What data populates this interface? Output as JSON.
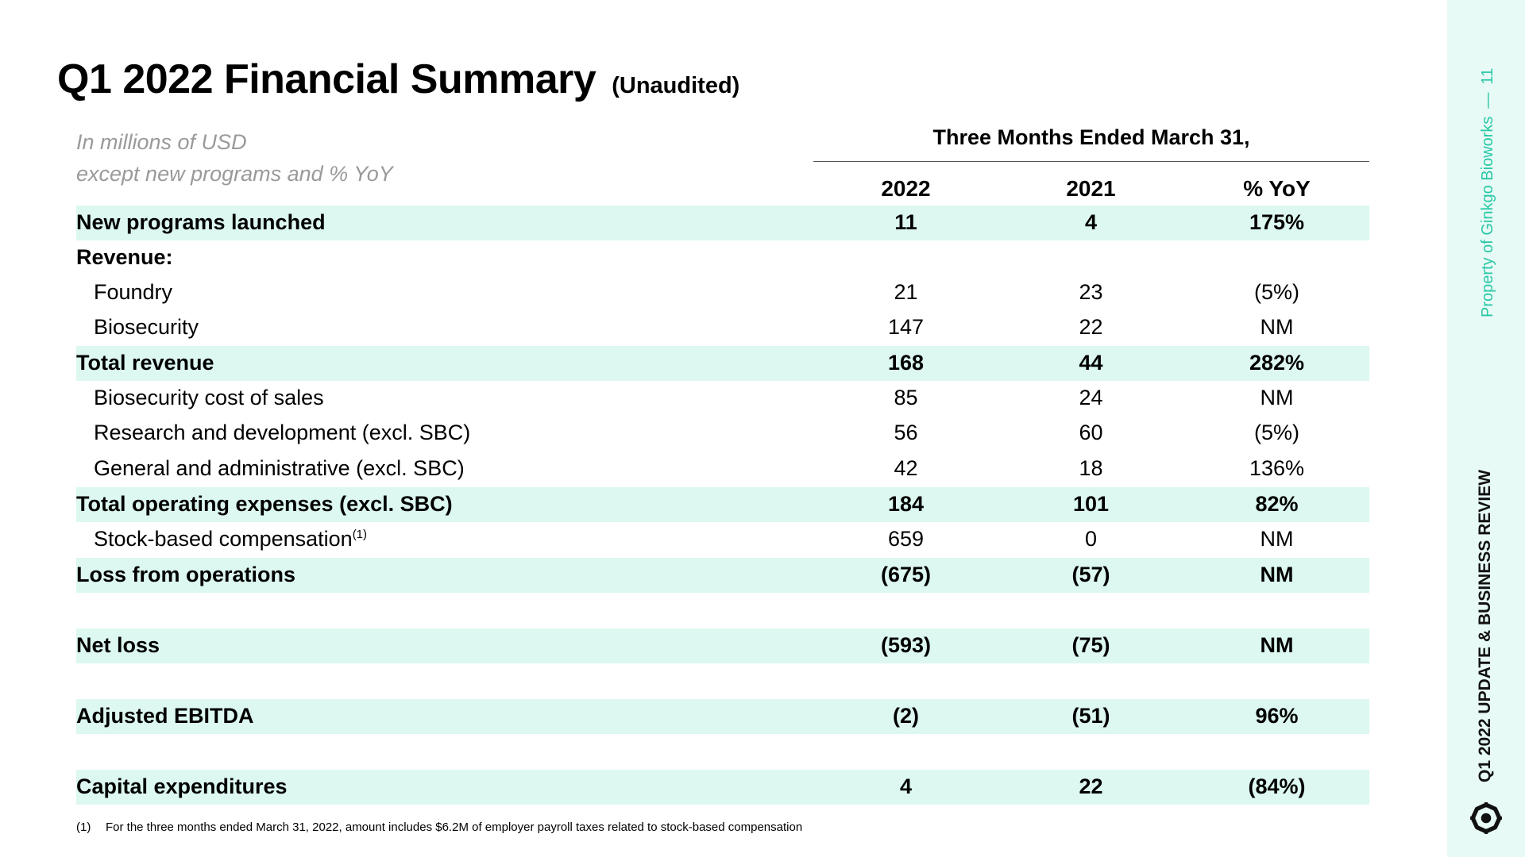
{
  "title": {
    "main": "Q1 2022 Financial Summary",
    "suffix": "(Unaudited)"
  },
  "units": {
    "line1": "In millions of USD",
    "line2": "except new programs and % YoY"
  },
  "period_header": "Three Months Ended March 31,",
  "columns": [
    "2022",
    "2021",
    "% YoY"
  ],
  "rows": [
    {
      "label": "New programs launched",
      "values": [
        "11",
        "4",
        "175%"
      ]
    },
    {
      "label": "Revenue:",
      "values": [
        "",
        "",
        ""
      ]
    },
    {
      "label": "Foundry",
      "values": [
        "21",
        "23",
        "(5%)"
      ]
    },
    {
      "label": "Biosecurity",
      "values": [
        "147",
        "22",
        "NM"
      ]
    },
    {
      "label": "Total revenue",
      "values": [
        "168",
        "44",
        "282%"
      ]
    },
    {
      "label": "Biosecurity cost of sales",
      "values": [
        "85",
        "24",
        "NM"
      ]
    },
    {
      "label": "Research and development (excl. SBC)",
      "values": [
        "56",
        "60",
        "(5%)"
      ]
    },
    {
      "label": "General and administrative (excl. SBC)",
      "values": [
        "42",
        "18",
        "136%"
      ]
    },
    {
      "label": "Total operating expenses (excl. SBC)",
      "values": [
        "184",
        "101",
        "82%"
      ]
    },
    {
      "label": "Stock-based compensation",
      "footnote_mark": "(1)",
      "values": [
        "659",
        "0",
        "NM"
      ]
    },
    {
      "label": "Loss from operations",
      "values": [
        "(675)",
        "(57)",
        "NM"
      ]
    },
    {
      "label": "Net loss",
      "values": [
        "(593)",
        "(75)",
        "NM"
      ]
    },
    {
      "label": "Adjusted EBITDA",
      "values": [
        "(2)",
        "(51)",
        "96%"
      ]
    },
    {
      "label": "Capital expenditures",
      "values": [
        "4",
        "22",
        "(84%)"
      ]
    }
  ],
  "footnote": {
    "ref": "(1)",
    "text": "For the three months ended March 31, 2022, amount includes $6.2M of employer payroll taxes related to stock-based compensation"
  },
  "sidebar": {
    "property": "Property of Ginkgo Bioworks",
    "dash": "—",
    "page_number": "11",
    "section": "Q1 2022 UPDATE & BUSINESS REVIEW"
  },
  "colors": {
    "highlight": "#dcf8f0",
    "accent": "#28c7a6",
    "band": "#e7faf5"
  }
}
